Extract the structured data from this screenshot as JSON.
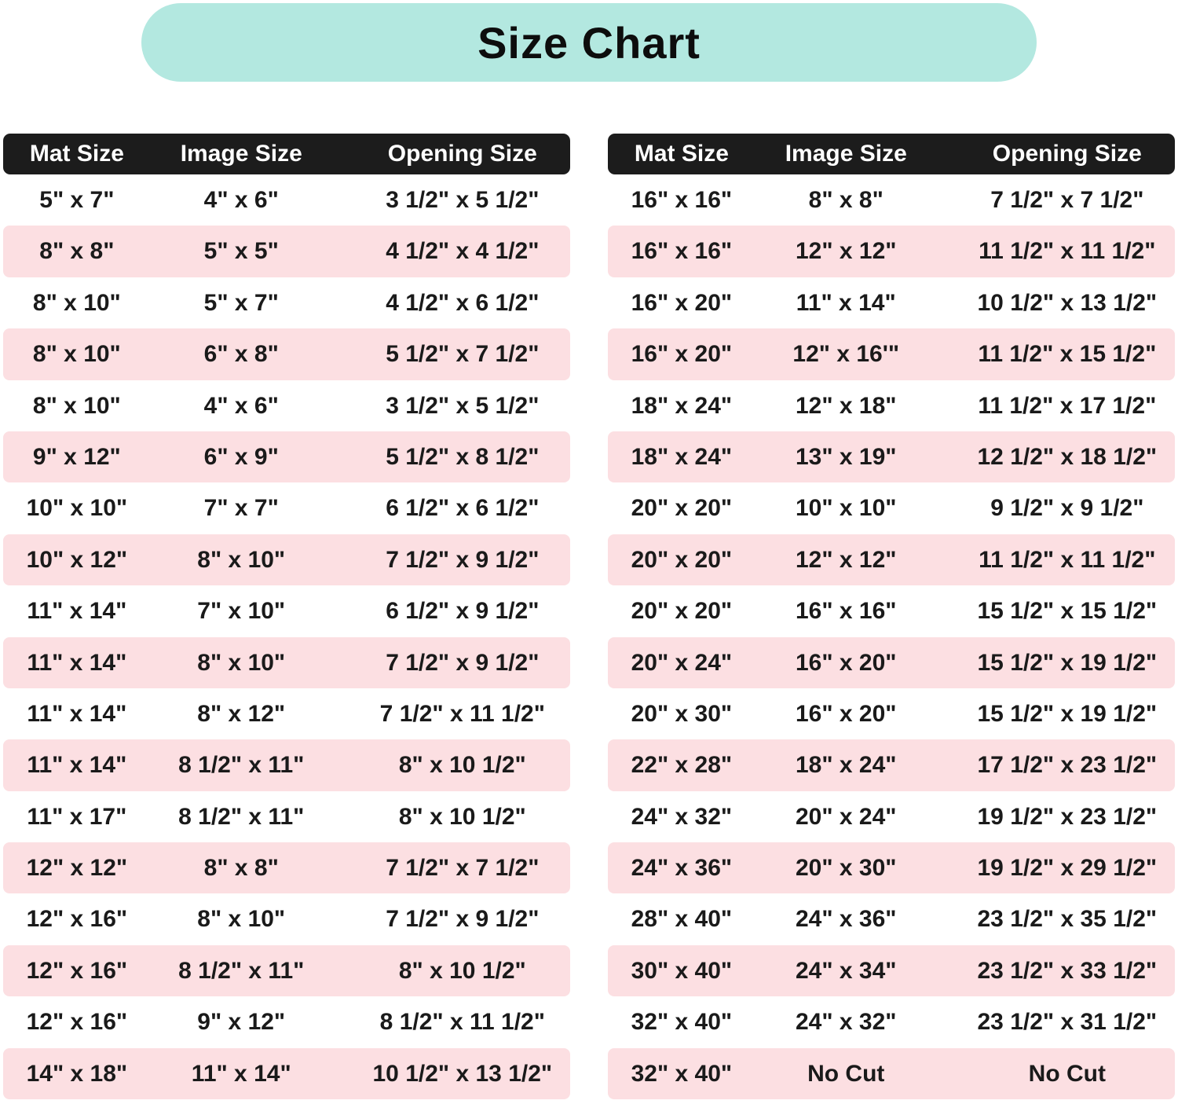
{
  "title": "Size Chart",
  "columns": [
    "Mat Size",
    "Image Size",
    "Opening Size"
  ],
  "colors": {
    "banner_mint": "#b3e8e0",
    "header_bar_black": "#1c1c1c",
    "header_text": "#ffffff",
    "row_pink": "#fcdfe2",
    "row_white": "#ffffff",
    "text": "#1a1a1a"
  },
  "chart_data": [
    {
      "type": "table",
      "title": "Size Chart",
      "position": "left",
      "columns": [
        "Mat Size",
        "Image Size",
        "Opening Size"
      ],
      "rows": [
        [
          "5\" x 7\"",
          "4\" x 6\"",
          "3 1/2\" x 5 1/2\""
        ],
        [
          "8\" x 8\"",
          "5\" x 5\"",
          "4 1/2\" x 4 1/2\""
        ],
        [
          "8\" x 10\"",
          "5\" x 7\"",
          "4 1/2\" x 6 1/2\""
        ],
        [
          "8\" x 10\"",
          "6\" x 8\"",
          "5 1/2\" x 7 1/2\""
        ],
        [
          "8\" x 10\"",
          "4\" x 6\"",
          "3 1/2\" x 5 1/2\""
        ],
        [
          "9\" x 12\"",
          "6\" x 9\"",
          "5 1/2\" x 8 1/2\""
        ],
        [
          "10\" x 10\"",
          "7\" x 7\"",
          "6 1/2\" x 6 1/2\""
        ],
        [
          "10\" x 12\"",
          "8\" x 10\"",
          "7 1/2\" x 9 1/2\""
        ],
        [
          "11\" x 14\"",
          "7\" x 10\"",
          "6 1/2\" x 9 1/2\""
        ],
        [
          "11\" x 14\"",
          "8\" x 10\"",
          "7 1/2\" x 9 1/2\""
        ],
        [
          "11\" x 14\"",
          "8\" x 12\"",
          "7 1/2\" x 11 1/2\""
        ],
        [
          "11\" x 14\"",
          "8 1/2\" x 11\"",
          "8\" x 10 1/2\""
        ],
        [
          "11\" x 17\"",
          "8 1/2\" x 11\"",
          "8\" x 10 1/2\""
        ],
        [
          "12\" x 12\"",
          "8\" x 8\"",
          "7 1/2\" x 7 1/2\""
        ],
        [
          "12\" x 16\"",
          "8\" x 10\"",
          "7 1/2\" x 9 1/2\""
        ],
        [
          "12\" x 16\"",
          "8 1/2\" x 11\"",
          "8\" x 10 1/2\""
        ],
        [
          "12\" x 16\"",
          "9\" x 12\"",
          "8 1/2\" x 11 1/2\""
        ],
        [
          "14\" x 18\"",
          "11\" x 14\"",
          "10 1/2\" x 13 1/2\""
        ]
      ]
    },
    {
      "type": "table",
      "title": "Size Chart",
      "position": "right",
      "columns": [
        "Mat Size",
        "Image Size",
        "Opening Size"
      ],
      "rows": [
        [
          "16\" x 16\"",
          "8\" x 8\"",
          "7 1/2\" x 7 1/2\""
        ],
        [
          "16\" x 16\"",
          "12\" x 12\"",
          "11 1/2\" x 11 1/2\""
        ],
        [
          "16\" x 20\"",
          "11\" x 14\"",
          "10 1/2\" x 13 1/2\""
        ],
        [
          "16\" x 20\"",
          "12\" x 16'\"",
          "11 1/2\" x 15 1/2\""
        ],
        [
          "18\" x 24\"",
          "12\" x 18\"",
          "11 1/2\" x 17 1/2\""
        ],
        [
          "18\" x 24\"",
          "13\" x 19\"",
          "12 1/2\" x 18 1/2\""
        ],
        [
          "20\" x 20\"",
          "10\" x 10\"",
          "9 1/2\" x 9 1/2\""
        ],
        [
          "20\" x 20\"",
          "12\" x 12\"",
          "11 1/2\" x 11 1/2\""
        ],
        [
          "20\" x 20\"",
          "16\" x 16\"",
          "15 1/2\" x 15 1/2\""
        ],
        [
          "20\" x 24\"",
          "16\" x 20\"",
          "15 1/2\" x 19 1/2\""
        ],
        [
          "20\" x 30\"",
          "16\" x 20\"",
          "15 1/2\" x 19 1/2\""
        ],
        [
          "22\" x 28\"",
          "18\" x 24\"",
          "17 1/2\" x 23 1/2\""
        ],
        [
          "24\" x 32\"",
          "20\" x 24\"",
          "19 1/2\" x 23 1/2\""
        ],
        [
          "24\" x 36\"",
          "20\" x 30\"",
          "19 1/2\" x 29 1/2\""
        ],
        [
          "28\" x 40\"",
          "24\" x 36\"",
          "23 1/2\" x 35 1/2\""
        ],
        [
          "30\" x 40\"",
          "24\" x 34\"",
          "23 1/2\" x 33 1/2\""
        ],
        [
          "32\" x 40\"",
          "24\" x 32\"",
          "23 1/2\" x 31 1/2\""
        ],
        [
          "32\" x 40\"",
          "No Cut",
          "No Cut"
        ]
      ]
    }
  ]
}
